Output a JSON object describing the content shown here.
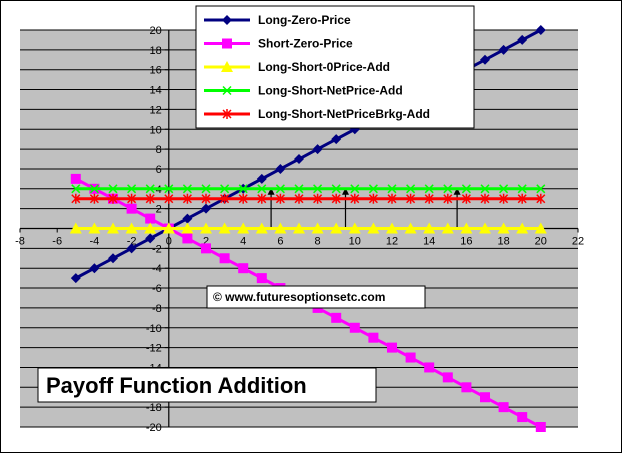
{
  "chart_data": {
    "type": "line",
    "title": "Payoff Function Addition",
    "xlabel": "",
    "ylabel": "",
    "xlim": [
      -8,
      22
    ],
    "ylim": [
      -20,
      20
    ],
    "x_ticks": [
      -8,
      -6,
      -4,
      -2,
      0,
      2,
      4,
      6,
      8,
      10,
      12,
      14,
      16,
      18,
      20,
      22
    ],
    "y_ticks": [
      -20,
      -18,
      -16,
      -14,
      -12,
      -10,
      -8,
      -6,
      -4,
      -2,
      0,
      2,
      4,
      6,
      8,
      10,
      12,
      14,
      16,
      18,
      20
    ],
    "grid": true,
    "legend_position": "top-right",
    "annotation": "© www.futuresoptionsetc.com",
    "series": [
      {
        "name": "Long-Zero-Price",
        "color": "#000080",
        "marker": "diamond",
        "x": [
          -5,
          -4,
          -3,
          -2,
          -1,
          0,
          1,
          2,
          3,
          4,
          5,
          6,
          7,
          8,
          9,
          10,
          11,
          12,
          13,
          14,
          15,
          16,
          17,
          18,
          19,
          20
        ],
        "y": [
          -5,
          -4,
          -3,
          -2,
          -1,
          0,
          1,
          2,
          3,
          4,
          5,
          6,
          7,
          8,
          9,
          10,
          11,
          12,
          13,
          14,
          15,
          16,
          17,
          18,
          19,
          20
        ]
      },
      {
        "name": "Short-Zero-Price",
        "color": "#FF00FF",
        "marker": "square",
        "x": [
          -5,
          -4,
          -3,
          -2,
          -1,
          0,
          1,
          2,
          3,
          4,
          5,
          6,
          7,
          8,
          9,
          10,
          11,
          12,
          13,
          14,
          15,
          16,
          17,
          18,
          19,
          20
        ],
        "y": [
          5,
          4,
          3,
          2,
          1,
          0,
          -1,
          -2,
          -3,
          -4,
          -5,
          -6,
          -7,
          -8,
          -9,
          -10,
          -11,
          -12,
          -13,
          -14,
          -15,
          -16,
          -17,
          -18,
          -19,
          -20
        ]
      },
      {
        "name": "Long-Short-0Price-Add",
        "color": "#FFFF00",
        "marker": "triangle",
        "x": [
          -5,
          -4,
          -3,
          -2,
          -1,
          0,
          1,
          2,
          3,
          4,
          5,
          6,
          7,
          8,
          9,
          10,
          11,
          12,
          13,
          14,
          15,
          16,
          17,
          18,
          19,
          20
        ],
        "y": [
          0,
          0,
          0,
          0,
          0,
          0,
          0,
          0,
          0,
          0,
          0,
          0,
          0,
          0,
          0,
          0,
          0,
          0,
          0,
          0,
          0,
          0,
          0,
          0,
          0,
          0
        ]
      },
      {
        "name": "Long-Short-NetPrice-Add",
        "color": "#00FF00",
        "marker": "x",
        "x": [
          -5,
          -4,
          -3,
          -2,
          -1,
          0,
          1,
          2,
          3,
          4,
          5,
          6,
          7,
          8,
          9,
          10,
          11,
          12,
          13,
          14,
          15,
          16,
          17,
          18,
          19,
          20
        ],
        "y": [
          4,
          4,
          4,
          4,
          4,
          4,
          4,
          4,
          4,
          4,
          4,
          4,
          4,
          4,
          4,
          4,
          4,
          4,
          4,
          4,
          4,
          4,
          4,
          4,
          4,
          4
        ]
      },
      {
        "name": "Long-Short-NetPriceBrkg-Add",
        "color": "#FF0000",
        "marker": "star",
        "x": [
          -5,
          -4,
          -3,
          -2,
          -1,
          0,
          1,
          2,
          3,
          4,
          5,
          6,
          7,
          8,
          9,
          10,
          11,
          12,
          13,
          14,
          15,
          16,
          17,
          18,
          19,
          20
        ],
        "y": [
          3,
          3,
          3,
          3,
          3,
          3,
          3,
          3,
          3,
          3,
          3,
          3,
          3,
          3,
          3,
          3,
          3,
          3,
          3,
          3,
          3,
          3,
          3,
          3,
          3,
          3
        ]
      }
    ],
    "arrows": [
      {
        "x": 5.5,
        "from": 0,
        "to": 4
      },
      {
        "x": 9.5,
        "from": 0,
        "to": 4
      },
      {
        "x": 15.5,
        "from": 0,
        "to": 4
      }
    ]
  }
}
